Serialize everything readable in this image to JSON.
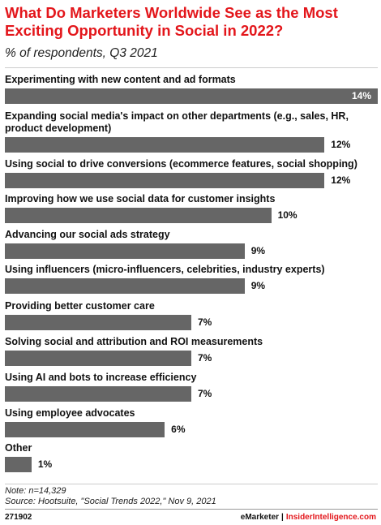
{
  "chart_data": {
    "type": "bar",
    "orientation": "horizontal",
    "title": "What Do Marketers Worldwide See as the Most Exciting Opportunity in Social in 2022?",
    "subtitle": "% of respondents, Q3 2021",
    "categories": [
      "Experimenting with new content and ad formats",
      "Expanding social media's impact on other departments (e.g., sales, HR, product development)",
      "Using social to drive conversions (ecommerce features, social shopping)",
      "Improving how we use social data for customer insights",
      "Advancing our social ads strategy",
      "Using influencers (micro-influencers, celebrities, industry experts)",
      "Providing better customer care",
      "Solving social and attribution and ROI measurements",
      "Using AI and bots to increase efficiency",
      "Using employee advocates",
      "Other"
    ],
    "values": [
      14,
      12,
      12,
      10,
      9,
      9,
      7,
      7,
      7,
      6,
      1
    ],
    "value_labels": [
      "14%",
      "12%",
      "12%",
      "10%",
      "9%",
      "9%",
      "7%",
      "7%",
      "7%",
      "6%",
      "1%"
    ],
    "xlim": [
      0,
      14
    ],
    "bar_color": "#666666",
    "grid": false,
    "legend": false
  },
  "footer": {
    "note": "Note: n=14,329",
    "source": "Source: Hootsuite, \"Social Trends 2022,\" Nov 9, 2021",
    "chart_id": "271902",
    "brand_emarketer": "eMarketer",
    "brand_separator": "|",
    "brand_insider": "InsiderIntelligence.com"
  },
  "colors": {
    "title": "#e3161b",
    "bar": "#666666",
    "brand_accent": "#e3161b"
  }
}
